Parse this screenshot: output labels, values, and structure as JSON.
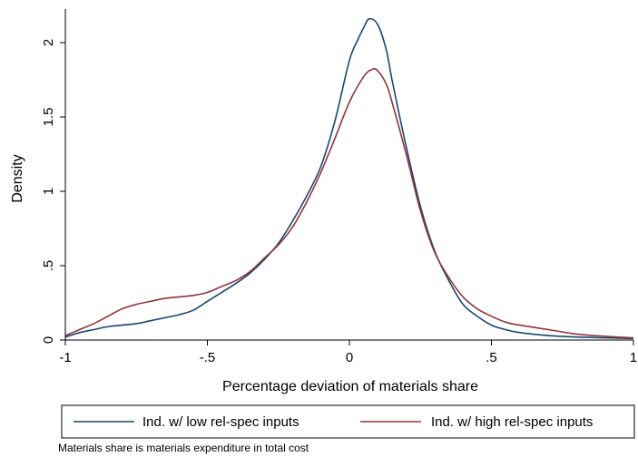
{
  "chart_data": {
    "type": "line",
    "title": "",
    "xlabel": "Percentage deviation of materials share",
    "ylabel": "Density",
    "xlim": [
      -1,
      1
    ],
    "ylim": [
      0,
      2.2
    ],
    "x_ticks": [
      -1,
      -0.5,
      0,
      0.5,
      1
    ],
    "x_tick_labels": [
      "-1",
      "-.5",
      "0",
      ".5",
      "1"
    ],
    "y_ticks": [
      0,
      0.5,
      1,
      1.5,
      2
    ],
    "y_tick_labels": [
      "0",
      ".5",
      "1",
      "1.5",
      "2"
    ],
    "grid": false,
    "legend_position": "bottom",
    "note": "Materials share is materials expenditure in total cost",
    "series": [
      {
        "name": "Ind. w/ low rel-spec inputs",
        "color": "#1a476f",
        "x": [
          -1.0,
          -0.95,
          -0.9,
          -0.85,
          -0.8,
          -0.75,
          -0.7,
          -0.65,
          -0.6,
          -0.55,
          -0.5,
          -0.45,
          -0.4,
          -0.35,
          -0.3,
          -0.25,
          -0.2,
          -0.15,
          -0.1,
          -0.05,
          0.0,
          0.03,
          0.05,
          0.07,
          0.1,
          0.13,
          0.15,
          0.2,
          0.25,
          0.3,
          0.35,
          0.4,
          0.45,
          0.5,
          0.55,
          0.6,
          0.7,
          0.8,
          0.9,
          1.0
        ],
        "y": [
          0.02,
          0.05,
          0.07,
          0.09,
          0.1,
          0.11,
          0.13,
          0.15,
          0.17,
          0.2,
          0.26,
          0.32,
          0.38,
          0.45,
          0.54,
          0.65,
          0.8,
          0.97,
          1.17,
          1.48,
          1.88,
          2.02,
          2.1,
          2.16,
          2.12,
          1.95,
          1.75,
          1.3,
          0.9,
          0.6,
          0.4,
          0.24,
          0.16,
          0.1,
          0.07,
          0.05,
          0.03,
          0.02,
          0.015,
          0.01
        ]
      },
      {
        "name": "Ind. w/ high rel-spec inputs",
        "color": "#90353b",
        "x": [
          -1.0,
          -0.95,
          -0.9,
          -0.85,
          -0.8,
          -0.75,
          -0.7,
          -0.65,
          -0.6,
          -0.55,
          -0.5,
          -0.45,
          -0.4,
          -0.35,
          -0.3,
          -0.25,
          -0.2,
          -0.15,
          -0.1,
          -0.05,
          0.0,
          0.05,
          0.08,
          0.1,
          0.13,
          0.15,
          0.2,
          0.25,
          0.3,
          0.35,
          0.4,
          0.45,
          0.5,
          0.55,
          0.6,
          0.7,
          0.8,
          0.9,
          1.0
        ],
        "y": [
          0.03,
          0.07,
          0.11,
          0.16,
          0.21,
          0.24,
          0.26,
          0.28,
          0.29,
          0.3,
          0.32,
          0.36,
          0.4,
          0.46,
          0.55,
          0.64,
          0.76,
          0.93,
          1.13,
          1.36,
          1.6,
          1.77,
          1.82,
          1.81,
          1.72,
          1.6,
          1.25,
          0.87,
          0.59,
          0.42,
          0.29,
          0.21,
          0.16,
          0.12,
          0.1,
          0.07,
          0.04,
          0.025,
          0.015
        ]
      }
    ]
  }
}
